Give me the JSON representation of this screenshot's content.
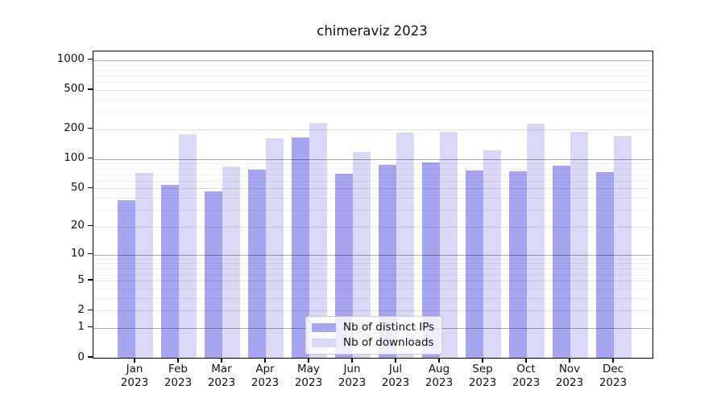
{
  "chart_data": {
    "type": "bar",
    "title": "chimeraviz 2023",
    "categories": [
      "Jan 2023",
      "Feb 2023",
      "Mar 2023",
      "Apr 2023",
      "May 2023",
      "Jun 2023",
      "Jul 2023",
      "Aug 2023",
      "Sep 2023",
      "Oct 2023",
      "Nov 2023",
      "Dec 2023"
    ],
    "x_tick_months": [
      "Jan",
      "Feb",
      "Mar",
      "Apr",
      "May",
      "Jun",
      "Jul",
      "Aug",
      "Sep",
      "Oct",
      "Nov",
      "Dec"
    ],
    "x_tick_year": "2023",
    "series": [
      {
        "name": "Nb of distinct IPs",
        "color": "#a6a6f0",
        "values": [
          38,
          54,
          47,
          78,
          165,
          71,
          87,
          93,
          76,
          75,
          85,
          73
        ]
      },
      {
        "name": "Nb of downloads",
        "color": "#d9d9f7",
        "values": [
          72,
          180,
          84,
          161,
          233,
          118,
          186,
          187,
          122,
          228,
          190,
          173
        ]
      }
    ],
    "xlabel": "",
    "ylabel": "",
    "y_scale": "log10(1+y)",
    "y_ticks": [
      0,
      1,
      2,
      5,
      10,
      20,
      50,
      100,
      200,
      500,
      1000
    ],
    "y_minor_ticks": [
      3,
      4,
      6,
      7,
      8,
      9,
      30,
      40,
      60,
      70,
      80,
      90,
      300,
      400,
      600,
      700,
      800,
      900
    ],
    "ylim": [
      0,
      1224
    ],
    "grid": true,
    "legend_position": "lower center"
  }
}
